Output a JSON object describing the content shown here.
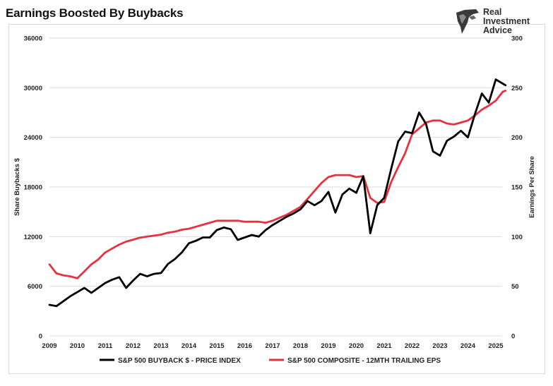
{
  "header": {
    "title": "Earnings Boosted By Buybacks"
  },
  "logo": {
    "lines": [
      "Real",
      "Investment",
      "Advice"
    ]
  },
  "chart_data": {
    "type": "line",
    "title": "Earnings Boosted By Buybacks",
    "x_ticks": [
      "2009",
      "2010",
      "2011",
      "2012",
      "2013",
      "2014",
      "2015",
      "2016",
      "2017",
      "2018",
      "2019",
      "2020",
      "2021",
      "2022",
      "2023",
      "2024",
      "2025"
    ],
    "xlim": [
      2009,
      2025.35
    ],
    "y_left": {
      "label": "Share Buybacks $",
      "ylim": [
        0,
        36000
      ],
      "ticks": [
        "0",
        "6000",
        "12000",
        "18000",
        "24000",
        "30000",
        "36000"
      ]
    },
    "y_right": {
      "label": "Earnings Per Share",
      "ylim": [
        0,
        300
      ],
      "ticks": [
        "0",
        "50",
        "100",
        "150",
        "200",
        "250",
        "300"
      ]
    },
    "grid": {
      "horizontal": true,
      "vertical": false
    },
    "legend": "bottom",
    "series": [
      {
        "name": "S&P 500 BUYBACK $ - PRICE INDEX",
        "axis": "left",
        "color": "#000000",
        "points": [
          [
            2009.0,
            3750
          ],
          [
            2009.25,
            3600
          ],
          [
            2009.5,
            4200
          ],
          [
            2009.75,
            4800
          ],
          [
            2010.0,
            5300
          ],
          [
            2010.25,
            5800
          ],
          [
            2010.5,
            5200
          ],
          [
            2010.75,
            5800
          ],
          [
            2011.0,
            6400
          ],
          [
            2011.25,
            6800
          ],
          [
            2011.5,
            7100
          ],
          [
            2011.75,
            5800
          ],
          [
            2012.0,
            6700
          ],
          [
            2012.25,
            7500
          ],
          [
            2012.5,
            7200
          ],
          [
            2012.75,
            7500
          ],
          [
            2013.0,
            7600
          ],
          [
            2013.25,
            8700
          ],
          [
            2013.5,
            9300
          ],
          [
            2013.75,
            10100
          ],
          [
            2014.0,
            11200
          ],
          [
            2014.25,
            11500
          ],
          [
            2014.5,
            11900
          ],
          [
            2014.75,
            11900
          ],
          [
            2015.0,
            12800
          ],
          [
            2015.25,
            13100
          ],
          [
            2015.5,
            12900
          ],
          [
            2015.75,
            11600
          ],
          [
            2016.0,
            11900
          ],
          [
            2016.25,
            12200
          ],
          [
            2016.5,
            12000
          ],
          [
            2016.75,
            12800
          ],
          [
            2017.0,
            13400
          ],
          [
            2017.25,
            13900
          ],
          [
            2017.5,
            14400
          ],
          [
            2017.75,
            14800
          ],
          [
            2018.0,
            15300
          ],
          [
            2018.25,
            16300
          ],
          [
            2018.5,
            15800
          ],
          [
            2018.75,
            16300
          ],
          [
            2019.0,
            17400
          ],
          [
            2019.25,
            14900
          ],
          [
            2019.5,
            17100
          ],
          [
            2019.75,
            17800
          ],
          [
            2020.0,
            17300
          ],
          [
            2020.25,
            19300
          ],
          [
            2020.5,
            12400
          ],
          [
            2020.75,
            15800
          ],
          [
            2021.0,
            16700
          ],
          [
            2021.25,
            20200
          ],
          [
            2021.5,
            23500
          ],
          [
            2021.75,
            24700
          ],
          [
            2022.0,
            24500
          ],
          [
            2022.25,
            27000
          ],
          [
            2022.5,
            25600
          ],
          [
            2022.75,
            22300
          ],
          [
            2023.0,
            21800
          ],
          [
            2023.25,
            23600
          ],
          [
            2023.5,
            24100
          ],
          [
            2023.75,
            24800
          ],
          [
            2024.0,
            24000
          ],
          [
            2024.25,
            26800
          ],
          [
            2024.5,
            29300
          ],
          [
            2024.75,
            28200
          ],
          [
            2025.0,
            31000
          ],
          [
            2025.25,
            30500
          ],
          [
            2025.35,
            30300
          ]
        ]
      },
      {
        "name": "S&P 500 COMPOSITE - 12MTH TRAILING EPS",
        "axis": "right",
        "color": "#e8313f",
        "points": [
          [
            2009.0,
            72
          ],
          [
            2009.25,
            63
          ],
          [
            2009.5,
            61
          ],
          [
            2009.75,
            60
          ],
          [
            2010.0,
            58
          ],
          [
            2010.25,
            65
          ],
          [
            2010.5,
            72
          ],
          [
            2010.75,
            77
          ],
          [
            2011.0,
            84
          ],
          [
            2011.25,
            88
          ],
          [
            2011.5,
            92
          ],
          [
            2011.75,
            95
          ],
          [
            2012.0,
            97
          ],
          [
            2012.25,
            99
          ],
          [
            2012.5,
            100
          ],
          [
            2012.75,
            101
          ],
          [
            2013.0,
            102
          ],
          [
            2013.25,
            104
          ],
          [
            2013.5,
            105
          ],
          [
            2013.75,
            107
          ],
          [
            2014.0,
            108
          ],
          [
            2014.25,
            110
          ],
          [
            2014.5,
            112
          ],
          [
            2014.75,
            114
          ],
          [
            2015.0,
            116
          ],
          [
            2015.25,
            116
          ],
          [
            2015.5,
            116
          ],
          [
            2015.75,
            116
          ],
          [
            2016.0,
            115
          ],
          [
            2016.25,
            115
          ],
          [
            2016.5,
            115
          ],
          [
            2016.75,
            114
          ],
          [
            2017.0,
            116
          ],
          [
            2017.25,
            119
          ],
          [
            2017.5,
            122
          ],
          [
            2017.75,
            126
          ],
          [
            2018.0,
            130
          ],
          [
            2018.25,
            138
          ],
          [
            2018.5,
            146
          ],
          [
            2018.75,
            154
          ],
          [
            2019.0,
            160
          ],
          [
            2019.25,
            162
          ],
          [
            2019.5,
            162
          ],
          [
            2019.75,
            162
          ],
          [
            2020.0,
            160
          ],
          [
            2020.25,
            161
          ],
          [
            2020.5,
            139
          ],
          [
            2020.75,
            134
          ],
          [
            2021.0,
            135
          ],
          [
            2021.25,
            155
          ],
          [
            2021.5,
            170
          ],
          [
            2021.75,
            184
          ],
          [
            2022.0,
            203
          ],
          [
            2022.25,
            209
          ],
          [
            2022.5,
            215
          ],
          [
            2022.75,
            217
          ],
          [
            2023.0,
            217
          ],
          [
            2023.25,
            214
          ],
          [
            2023.5,
            213
          ],
          [
            2023.75,
            215
          ],
          [
            2024.0,
            217
          ],
          [
            2024.25,
            222
          ],
          [
            2024.5,
            228
          ],
          [
            2024.75,
            232
          ],
          [
            2025.0,
            237
          ],
          [
            2025.25,
            246
          ],
          [
            2025.35,
            247
          ]
        ]
      }
    ]
  }
}
